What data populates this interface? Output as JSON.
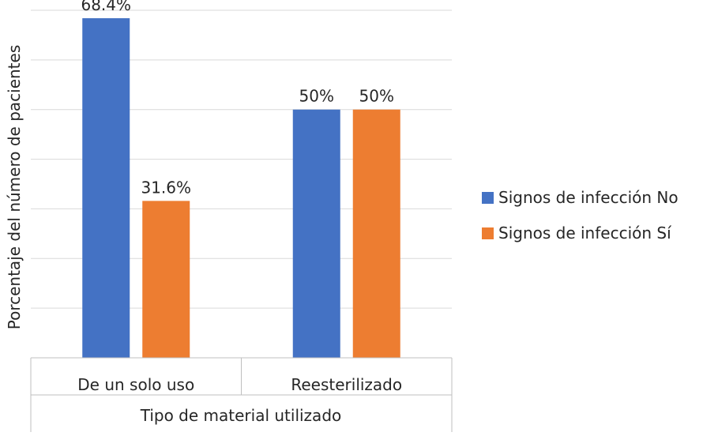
{
  "chart_data": {
    "type": "bar",
    "categories": [
      "De un solo uso",
      "Reesterilizado"
    ],
    "series": [
      {
        "name": "Signos de infección No",
        "values": [
          68.4,
          50
        ],
        "labels": [
          "68.4%",
          "50%"
        ],
        "color": "#4472C4"
      },
      {
        "name": "Signos de infección Sí",
        "values": [
          31.6,
          50
        ],
        "labels": [
          "31.6%",
          "50%"
        ],
        "color": "#ED7D31"
      }
    ],
    "xlabel": "Tipo de material utilizado",
    "ylabel": "Porcentaje del número de pacientes",
    "ylim": [
      0,
      70
    ],
    "grid": true,
    "legend": "right"
  }
}
